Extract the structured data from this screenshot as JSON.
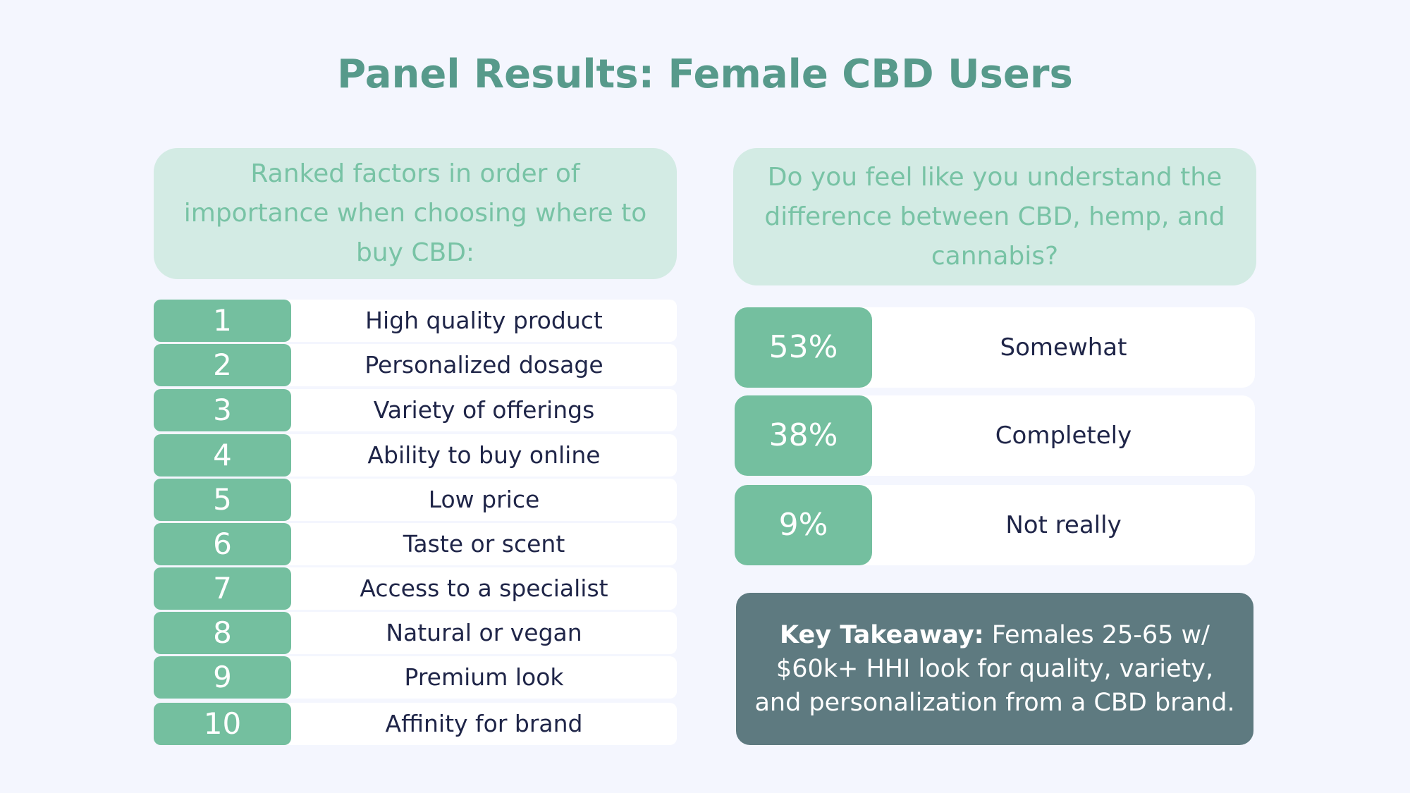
{
  "title": "Panel Results: Female CBD Users",
  "ranking": {
    "question": "Ranked factors in order of importance when choosing where to buy CBD:",
    "items": [
      {
        "rank": "1",
        "label": "High quality product"
      },
      {
        "rank": "2",
        "label": "Personalized dosage"
      },
      {
        "rank": "3",
        "label": "Variety of offerings"
      },
      {
        "rank": "4",
        "label": "Ability to buy online"
      },
      {
        "rank": "5",
        "label": "Low price"
      },
      {
        "rank": "6",
        "label": "Taste or scent"
      },
      {
        "rank": "7",
        "label": "Access to a specialist"
      },
      {
        "rank": "8",
        "label": "Natural or vegan"
      },
      {
        "rank": "9",
        "label": "Premium look"
      },
      {
        "rank": "10",
        "label": "Affinity for brand"
      }
    ]
  },
  "understanding": {
    "question": "Do you feel like you understand the difference between CBD, hemp, and cannabis?",
    "answers": [
      {
        "percent": "53%",
        "label": "Somewhat"
      },
      {
        "percent": "38%",
        "label": "Completely"
      },
      {
        "percent": "9%",
        "label": "Not really"
      }
    ]
  },
  "takeaway": {
    "label": "Key Takeaway:",
    "text": "Females 25-65 w/ $60k+ HHI look for quality, variety, and personalization from a CBD brand."
  },
  "colors": {
    "background": "#f4f6fe",
    "title": "#579a8b",
    "question_box": "#d3ebe4",
    "question_text": "#78c3a5",
    "accent_green": "#74bf9f",
    "dark_text": "#1f2548",
    "takeaway_box": "#5e7a80"
  }
}
